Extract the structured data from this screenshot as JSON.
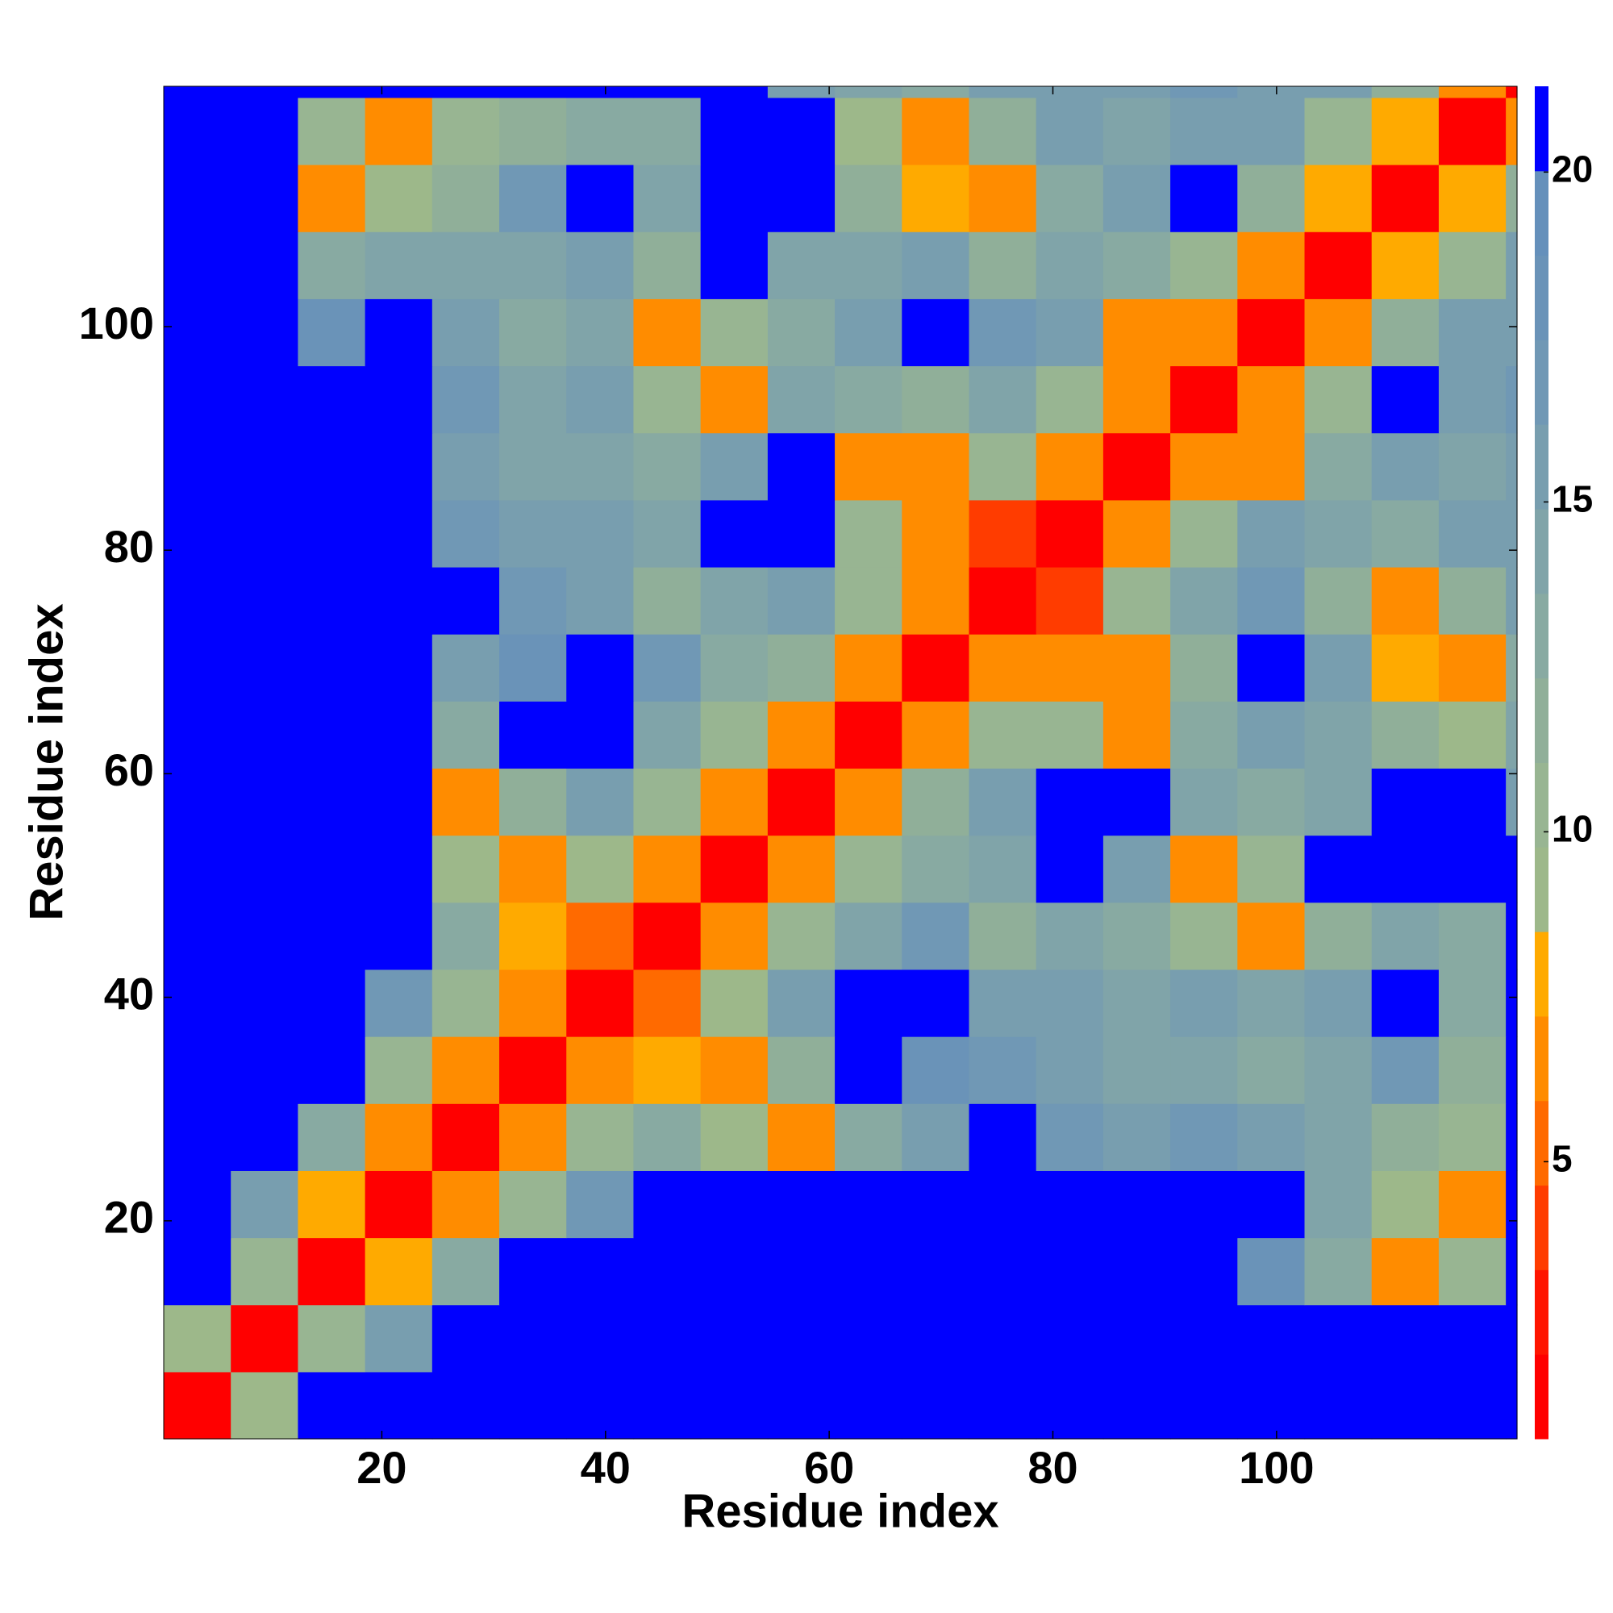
{
  "chart_data": {
    "type": "heatmap",
    "x_label": "Residue index",
    "y_label": "Residue index",
    "xbins": [
      0.5,
      6.5,
      12.5,
      18.5,
      24.5,
      30.5,
      36.5,
      42.5,
      48.5,
      54.5,
      60.5,
      66.5,
      72.5,
      78.5,
      84.5,
      90.5,
      96.5,
      102.5,
      108.5,
      114.5,
      120.5,
      121.5
    ],
    "ybins": [
      0.5,
      6.5,
      12.5,
      18.5,
      24.5,
      30.5,
      36.5,
      42.5,
      48.5,
      54.5,
      60.5,
      66.5,
      72.5,
      78.5,
      84.5,
      90.5,
      96.5,
      102.5,
      108.5,
      114.5,
      120.5,
      121.5
    ],
    "xlim": [
      0.5,
      121.5
    ],
    "ylim": [
      0.5,
      121.5
    ],
    "xticks": [
      20,
      40,
      60,
      80,
      100
    ],
    "yticks": [
      20,
      40,
      60,
      80,
      100
    ],
    "zlim": [
      0.8,
      21.3
    ],
    "zticks": [
      5,
      10,
      15,
      20
    ],
    "colors": [
      "#ff0000",
      "#ff1500",
      "#ff3c00",
      "#ff6a00",
      "#ff8c00",
      "#ffaa00",
      "#9db88a",
      "#98b592",
      "#90af99",
      "#88aaa2",
      "#80a4a9",
      "#789eaf",
      "#7098b5",
      "#6a93b8",
      "#6590bb",
      "#0000ff"
    ],
    "z": [
      [
        2,
        9,
        21,
        21,
        21,
        21,
        21,
        21,
        21,
        21,
        21,
        21,
        21,
        21,
        21,
        21,
        21,
        21,
        21,
        21,
        21
      ],
      [
        9,
        2,
        10,
        16,
        21,
        21,
        21,
        21,
        21,
        21,
        21,
        21,
        21,
        21,
        21,
        21,
        21,
        21,
        21,
        21,
        21
      ],
      [
        21,
        10,
        2,
        8,
        13,
        21,
        21,
        21,
        21,
        21,
        21,
        21,
        21,
        21,
        21,
        21,
        18,
        13,
        6,
        11,
        21
      ],
      [
        21,
        16,
        8,
        2,
        7,
        11,
        17,
        21,
        21,
        21,
        21,
        21,
        21,
        21,
        21,
        21,
        21,
        14,
        9,
        6,
        21
      ],
      [
        21,
        21,
        13,
        7,
        2,
        7,
        11,
        13,
        9,
        7,
        13,
        15,
        21,
        17,
        16,
        17,
        15,
        14,
        12,
        11,
        21
      ],
      [
        21,
        21,
        21,
        11,
        7,
        2,
        7,
        8,
        6,
        12,
        21,
        18,
        17,
        15,
        14,
        14,
        13,
        14,
        17,
        12,
        21
      ],
      [
        21,
        21,
        21,
        17,
        11,
        7,
        2,
        5,
        9,
        16,
        21,
        21,
        16,
        15,
        14,
        16,
        14,
        16,
        21,
        13,
        21
      ],
      [
        21,
        21,
        21,
        21,
        13,
        8,
        5,
        2,
        7,
        11,
        14,
        17,
        12,
        14,
        13,
        10,
        6,
        12,
        14,
        13,
        21
      ],
      [
        21,
        21,
        21,
        21,
        9,
        6,
        9,
        7,
        2,
        7,
        11,
        13,
        14,
        21,
        15,
        6,
        11,
        21,
        21,
        21,
        21
      ],
      [
        21,
        21,
        21,
        21,
        7,
        12,
        16,
        11,
        7,
        2,
        6,
        12,
        15,
        21,
        21,
        14,
        13,
        14,
        21,
        21,
        15
      ],
      [
        21,
        21,
        21,
        21,
        13,
        21,
        21,
        14,
        11,
        6,
        2,
        7,
        11,
        10,
        7,
        13,
        16,
        14,
        12,
        9,
        14
      ],
      [
        21,
        21,
        21,
        21,
        15,
        18,
        21,
        17,
        13,
        12,
        7,
        2,
        7,
        6,
        6,
        12,
        21,
        15,
        8,
        6,
        13
      ],
      [
        21,
        21,
        21,
        21,
        21,
        17,
        16,
        12,
        14,
        15,
        11,
        7,
        2,
        4,
        10,
        14,
        17,
        12,
        6,
        12,
        16
      ],
      [
        21,
        21,
        21,
        21,
        17,
        15,
        15,
        14,
        21,
        21,
        10,
        6,
        4,
        2,
        7,
        10,
        16,
        14,
        13,
        15,
        16
      ],
      [
        21,
        21,
        21,
        21,
        16,
        14,
        14,
        13,
        15,
        21,
        7,
        6,
        10,
        7,
        2,
        7,
        6,
        13,
        16,
        14,
        15
      ],
      [
        21,
        21,
        21,
        21,
        17,
        14,
        16,
        10,
        6,
        14,
        13,
        12,
        14,
        10,
        7,
        2,
        7,
        11,
        21,
        16,
        17
      ],
      [
        21,
        21,
        18,
        21,
        15,
        13,
        14,
        6,
        11,
        13,
        16,
        21,
        17,
        16,
        6,
        7,
        2,
        7,
        12,
        15,
        16
      ],
      [
        21,
        21,
        13,
        14,
        14,
        14,
        16,
        12,
        21,
        14,
        14,
        15,
        12,
        14,
        13,
        11,
        7,
        2,
        8,
        11,
        15
      ],
      [
        21,
        21,
        6,
        9,
        12,
        17,
        21,
        14,
        21,
        21,
        12,
        8,
        6,
        13,
        16,
        21,
        12,
        8,
        2,
        8,
        12
      ],
      [
        21,
        21,
        11,
        6,
        11,
        12,
        13,
        13,
        21,
        21,
        9,
        6,
        12,
        15,
        14,
        16,
        15,
        11,
        8,
        2,
        6
      ],
      [
        21,
        21,
        21,
        21,
        21,
        21,
        21,
        21,
        21,
        15,
        14,
        13,
        16,
        16,
        15,
        17,
        16,
        15,
        12,
        6,
        2
      ]
    ]
  }
}
